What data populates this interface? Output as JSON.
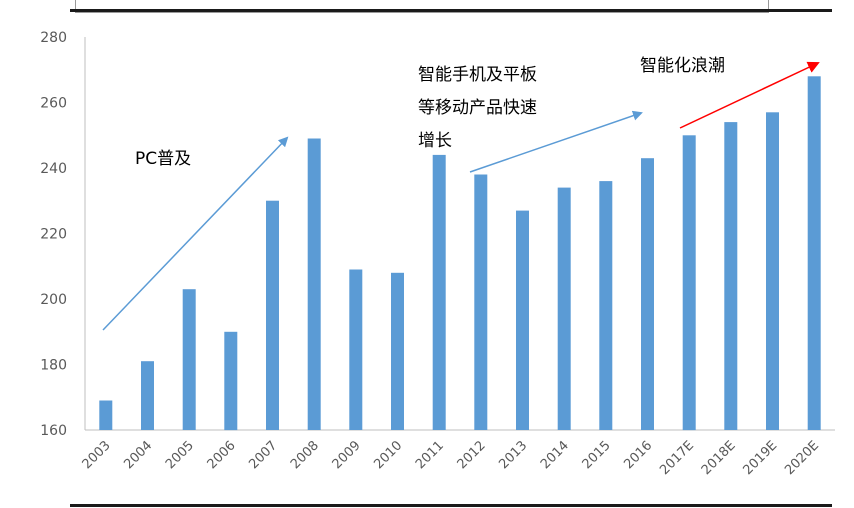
{
  "chart_data": {
    "type": "bar",
    "title": "",
    "xlabel": "",
    "ylabel": "",
    "categories": [
      "2003",
      "2004",
      "2005",
      "2006",
      "2007",
      "2008",
      "2009",
      "2010",
      "2011",
      "2012",
      "2013",
      "2014",
      "2015",
      "2016",
      "2017E",
      "2018E",
      "2019E",
      "2020E"
    ],
    "values": [
      169,
      181,
      203,
      190,
      230,
      249,
      209,
      208,
      244,
      238,
      227,
      234,
      236,
      243,
      250,
      254,
      257,
      268
    ],
    "ylim": [
      160,
      280
    ],
    "yticks": [
      160,
      180,
      200,
      220,
      240,
      260,
      280
    ],
    "bar_color": "#5b9bd5",
    "grid": false,
    "annotations": {
      "pc": "PC普及",
      "mobile_lines": [
        "智能手机及平板",
        "等移动产品快速",
        "增长"
      ],
      "smart": "智能化浪潮"
    },
    "arrow_colors": {
      "blue": "#5b9bd5",
      "red": "#ff0000"
    }
  }
}
